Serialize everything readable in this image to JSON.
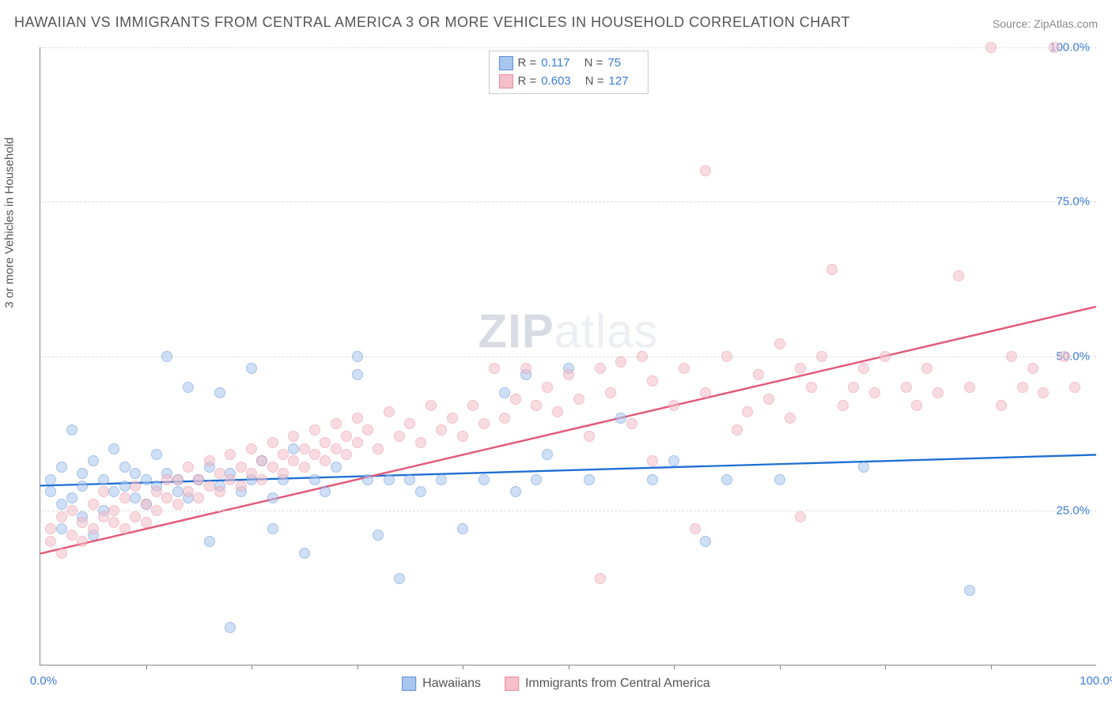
{
  "title": "HAWAIIAN VS IMMIGRANTS FROM CENTRAL AMERICA 3 OR MORE VEHICLES IN HOUSEHOLD CORRELATION CHART",
  "source": "Source: ZipAtlas.com",
  "ylabel": "3 or more Vehicles in Household",
  "watermark_bold": "ZIP",
  "watermark_rest": "atlas",
  "chart": {
    "type": "scatter",
    "xlim": [
      0,
      100
    ],
    "ylim": [
      0,
      100
    ],
    "x_ticks": [
      0,
      100
    ],
    "x_tick_labels": [
      "0.0%",
      "100.0%"
    ],
    "x_minor_ticks": [
      10,
      20,
      30,
      40,
      50,
      60,
      70,
      80,
      90
    ],
    "y_ticks": [
      25,
      50,
      75,
      100
    ],
    "y_tick_labels": [
      "25.0%",
      "50.0%",
      "75.0%",
      "100.0%"
    ],
    "grid_color": "#dddddd",
    "background_color": "#ffffff",
    "axis_color": "#888888",
    "tick_label_color": "#3b7dd8",
    "marker_radius": 7,
    "marker_opacity": 0.55,
    "series": [
      {
        "name": "Hawaiians",
        "fill": "#a9c6ef",
        "stroke": "#5b8fd6",
        "line_color": "#1f6fd4",
        "r": 0.117,
        "n": 75,
        "trend": {
          "x1": 0,
          "y1": 29,
          "x2": 100,
          "y2": 34
        },
        "points": [
          [
            1,
            28
          ],
          [
            1,
            30
          ],
          [
            2,
            26
          ],
          [
            2,
            22
          ],
          [
            2,
            32
          ],
          [
            3,
            38
          ],
          [
            3,
            27
          ],
          [
            4,
            29
          ],
          [
            4,
            24
          ],
          [
            4,
            31
          ],
          [
            5,
            33
          ],
          [
            5,
            21
          ],
          [
            6,
            25
          ],
          [
            6,
            30
          ],
          [
            7,
            28
          ],
          [
            7,
            35
          ],
          [
            8,
            32
          ],
          [
            8,
            29
          ],
          [
            9,
            27
          ],
          [
            9,
            31
          ],
          [
            10,
            30
          ],
          [
            10,
            26
          ],
          [
            11,
            34
          ],
          [
            11,
            29
          ],
          [
            12,
            50
          ],
          [
            12,
            31
          ],
          [
            13,
            28
          ],
          [
            13,
            30
          ],
          [
            14,
            45
          ],
          [
            14,
            27
          ],
          [
            15,
            30
          ],
          [
            16,
            20
          ],
          [
            16,
            32
          ],
          [
            17,
            29
          ],
          [
            17,
            44
          ],
          [
            18,
            6
          ],
          [
            18,
            31
          ],
          [
            19,
            28
          ],
          [
            20,
            48
          ],
          [
            20,
            30
          ],
          [
            21,
            33
          ],
          [
            22,
            27
          ],
          [
            22,
            22
          ],
          [
            23,
            30
          ],
          [
            24,
            35
          ],
          [
            25,
            18
          ],
          [
            26,
            30
          ],
          [
            27,
            28
          ],
          [
            28,
            32
          ],
          [
            30,
            47
          ],
          [
            30,
            50
          ],
          [
            31,
            30
          ],
          [
            32,
            21
          ],
          [
            33,
            30
          ],
          [
            34,
            14
          ],
          [
            35,
            30
          ],
          [
            36,
            28
          ],
          [
            38,
            30
          ],
          [
            40,
            22
          ],
          [
            42,
            30
          ],
          [
            44,
            44
          ],
          [
            45,
            28
          ],
          [
            46,
            47
          ],
          [
            47,
            30
          ],
          [
            48,
            34
          ],
          [
            50,
            48
          ],
          [
            52,
            30
          ],
          [
            55,
            40
          ],
          [
            58,
            30
          ],
          [
            60,
            33
          ],
          [
            63,
            20
          ],
          [
            65,
            30
          ],
          [
            70,
            30
          ],
          [
            78,
            32
          ],
          [
            88,
            12
          ]
        ]
      },
      {
        "name": "Immigrants from Central America",
        "fill": "#f4bfca",
        "stroke": "#e88ba0",
        "line_color": "#e35a7a",
        "r": 0.603,
        "n": 127,
        "trend": {
          "x1": 0,
          "y1": 18,
          "x2": 100,
          "y2": 58
        },
        "points": [
          [
            1,
            22
          ],
          [
            1,
            20
          ],
          [
            2,
            24
          ],
          [
            2,
            18
          ],
          [
            3,
            21
          ],
          [
            3,
            25
          ],
          [
            4,
            23
          ],
          [
            4,
            20
          ],
          [
            5,
            26
          ],
          [
            5,
            22
          ],
          [
            6,
            24
          ],
          [
            6,
            28
          ],
          [
            7,
            23
          ],
          [
            7,
            25
          ],
          [
            8,
            27
          ],
          [
            8,
            22
          ],
          [
            9,
            24
          ],
          [
            9,
            29
          ],
          [
            10,
            26
          ],
          [
            10,
            23
          ],
          [
            11,
            28
          ],
          [
            11,
            25
          ],
          [
            12,
            30
          ],
          [
            12,
            27
          ],
          [
            13,
            26
          ],
          [
            13,
            30
          ],
          [
            14,
            28
          ],
          [
            14,
            32
          ],
          [
            15,
            30
          ],
          [
            15,
            27
          ],
          [
            16,
            33
          ],
          [
            16,
            29
          ],
          [
            17,
            31
          ],
          [
            17,
            28
          ],
          [
            18,
            34
          ],
          [
            18,
            30
          ],
          [
            19,
            32
          ],
          [
            19,
            29
          ],
          [
            20,
            35
          ],
          [
            20,
            31
          ],
          [
            21,
            33
          ],
          [
            21,
            30
          ],
          [
            22,
            36
          ],
          [
            22,
            32
          ],
          [
            23,
            34
          ],
          [
            23,
            31
          ],
          [
            24,
            37
          ],
          [
            24,
            33
          ],
          [
            25,
            35
          ],
          [
            25,
            32
          ],
          [
            26,
            38
          ],
          [
            26,
            34
          ],
          [
            27,
            36
          ],
          [
            27,
            33
          ],
          [
            28,
            39
          ],
          [
            28,
            35
          ],
          [
            29,
            37
          ],
          [
            29,
            34
          ],
          [
            30,
            40
          ],
          [
            30,
            36
          ],
          [
            31,
            38
          ],
          [
            32,
            35
          ],
          [
            33,
            41
          ],
          [
            34,
            37
          ],
          [
            35,
            39
          ],
          [
            36,
            36
          ],
          [
            37,
            42
          ],
          [
            38,
            38
          ],
          [
            39,
            40
          ],
          [
            40,
            37
          ],
          [
            41,
            42
          ],
          [
            42,
            39
          ],
          [
            43,
            48
          ],
          [
            44,
            40
          ],
          [
            45,
            43
          ],
          [
            46,
            48
          ],
          [
            47,
            42
          ],
          [
            48,
            45
          ],
          [
            49,
            41
          ],
          [
            50,
            47
          ],
          [
            51,
            43
          ],
          [
            52,
            37
          ],
          [
            53,
            48
          ],
          [
            53,
            14
          ],
          [
            54,
            44
          ],
          [
            55,
            49
          ],
          [
            56,
            39
          ],
          [
            57,
            50
          ],
          [
            58,
            33
          ],
          [
            58,
            46
          ],
          [
            60,
            42
          ],
          [
            61,
            48
          ],
          [
            62,
            22
          ],
          [
            63,
            80
          ],
          [
            63,
            44
          ],
          [
            65,
            50
          ],
          [
            66,
            38
          ],
          [
            67,
            41
          ],
          [
            68,
            47
          ],
          [
            69,
            43
          ],
          [
            70,
            52
          ],
          [
            71,
            40
          ],
          [
            72,
            48
          ],
          [
            72,
            24
          ],
          [
            73,
            45
          ],
          [
            74,
            50
          ],
          [
            75,
            64
          ],
          [
            76,
            42
          ],
          [
            77,
            45
          ],
          [
            78,
            48
          ],
          [
            79,
            44
          ],
          [
            80,
            50
          ],
          [
            82,
            45
          ],
          [
            83,
            42
          ],
          [
            84,
            48
          ],
          [
            85,
            44
          ],
          [
            87,
            63
          ],
          [
            88,
            45
          ],
          [
            90,
            100
          ],
          [
            91,
            42
          ],
          [
            92,
            50
          ],
          [
            93,
            45
          ],
          [
            94,
            48
          ],
          [
            95,
            44
          ],
          [
            96,
            100
          ],
          [
            97,
            50
          ],
          [
            98,
            45
          ]
        ]
      }
    ]
  },
  "legend_bottom": [
    {
      "label": "Hawaiians",
      "swatch_fill": "#a9c6ef",
      "swatch_stroke": "#5b8fd6"
    },
    {
      "label": "Immigrants from Central America",
      "swatch_fill": "#f4bfca",
      "swatch_stroke": "#e88ba0"
    }
  ]
}
